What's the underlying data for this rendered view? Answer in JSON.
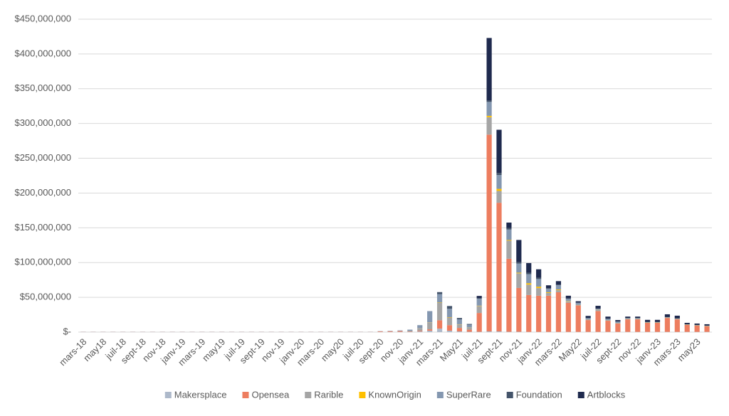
{
  "chart_data": {
    "type": "stacked_bar",
    "categories": [
      "mars-18",
      null,
      "may18",
      null,
      "juil-18",
      null,
      "sept-18",
      null,
      "nov-18",
      null,
      "janv-19",
      null,
      "mars-19",
      null,
      "may19",
      null,
      "juil-19",
      null,
      "sept-19",
      null,
      "nov-19",
      null,
      "janv-20",
      null,
      "mars-20",
      null,
      "may20",
      null,
      "juil-20",
      null,
      "sept-20",
      null,
      "nov-20",
      null,
      "janv-21",
      null,
      "mars-21",
      null,
      "May21",
      null,
      "juil-21",
      null,
      "sept-21",
      null,
      "nov-21",
      null,
      "janv-22",
      null,
      "mars-22",
      null,
      "May22",
      null,
      "juil-22",
      null,
      "sept-22",
      null,
      "nov-22",
      null,
      "janv-23",
      null,
      "mars-23",
      null,
      "may23",
      null
    ],
    "series": [
      {
        "name": "Makersplace",
        "color": "#adb9ca",
        "values": [
          100000,
          100000,
          100000,
          100000,
          100000,
          100000,
          100000,
          100000,
          100000,
          100000,
          100000,
          100000,
          100000,
          100000,
          100000,
          100000,
          100000,
          100000,
          100000,
          100000,
          100000,
          100000,
          100000,
          100000,
          100000,
          100000,
          100000,
          100000,
          100000,
          100000,
          300000,
          300000,
          400000,
          500000,
          1000000,
          2000000,
          5000000,
          2000000,
          1000000,
          500000,
          500000,
          1000000,
          1000000,
          500000,
          500000,
          300000,
          300000,
          300000,
          300000,
          300000,
          300000,
          300000,
          300000,
          300000,
          300000,
          300000,
          300000,
          300000,
          300000,
          300000,
          300000,
          300000,
          300000,
          300000
        ]
      },
      {
        "name": "Opensea",
        "color": "#ed7d5f",
        "values": [
          200000,
          200000,
          200000,
          200000,
          200000,
          200000,
          200000,
          200000,
          200000,
          200000,
          200000,
          200000,
          200000,
          200000,
          200000,
          200000,
          200000,
          200000,
          200000,
          200000,
          200000,
          200000,
          200000,
          200000,
          200000,
          200000,
          200000,
          200000,
          200000,
          200000,
          800000,
          1000000,
          1200000,
          500000,
          1000000,
          2000000,
          12000000,
          8000000,
          5000000,
          3000000,
          27000000,
          283000000,
          185000000,
          105000000,
          63000000,
          53000000,
          52000000,
          52000000,
          57000000,
          42000000,
          38000000,
          17000000,
          30000000,
          16000000,
          12000000,
          18000000,
          18000000,
          13000000,
          13000000,
          20000000,
          18000000,
          10000000,
          9000000,
          8000000
        ]
      },
      {
        "name": "Rarible",
        "color": "#a5a5a5",
        "values": [
          0,
          0,
          0,
          0,
          0,
          0,
          0,
          0,
          0,
          0,
          0,
          0,
          0,
          0,
          0,
          0,
          0,
          0,
          0,
          0,
          0,
          0,
          0,
          0,
          0,
          0,
          0,
          0,
          0,
          0,
          0,
          0,
          0,
          1000000,
          4000000,
          10000000,
          25000000,
          11000000,
          5000000,
          3000000,
          10000000,
          25000000,
          17000000,
          26000000,
          21000000,
          15000000,
          11000000,
          4000000,
          3000000,
          2000000,
          500000,
          500000,
          2000000,
          500000,
          500000,
          500000,
          500000,
          300000,
          300000,
          300000,
          300000,
          200000,
          200000,
          200000
        ]
      },
      {
        "name": "KnownOrigin",
        "color": "#ffc000",
        "values": [
          0,
          0,
          0,
          0,
          0,
          0,
          0,
          0,
          0,
          0,
          0,
          0,
          0,
          0,
          0,
          0,
          0,
          0,
          0,
          0,
          0,
          0,
          0,
          0,
          0,
          0,
          0,
          0,
          0,
          0,
          0,
          0,
          0,
          0,
          0,
          200000,
          500000,
          500000,
          300000,
          200000,
          500000,
          2000000,
          3000000,
          1000000,
          1000000,
          2000000,
          2000000,
          1000000,
          1000000,
          500000,
          300000,
          200000,
          200000,
          200000,
          200000,
          200000,
          200000,
          200000,
          200000,
          200000,
          200000,
          200000,
          200000,
          200000
        ]
      },
      {
        "name": "SuperRare",
        "color": "#8497b0",
        "values": [
          200000,
          200000,
          200000,
          200000,
          200000,
          200000,
          200000,
          200000,
          200000,
          200000,
          200000,
          200000,
          200000,
          200000,
          200000,
          200000,
          200000,
          200000,
          200000,
          200000,
          200000,
          200000,
          200000,
          200000,
          200000,
          200000,
          200000,
          200000,
          200000,
          200000,
          300000,
          500000,
          800000,
          1500000,
          4000000,
          16000000,
          12000000,
          12000000,
          7000000,
          4000000,
          10000000,
          20000000,
          20000000,
          15000000,
          13000000,
          13000000,
          11000000,
          5000000,
          6000000,
          3000000,
          3000000,
          2000000,
          1000000,
          2000000,
          2000000,
          1000000,
          1000000,
          500000,
          500000,
          500000,
          500000,
          300000,
          300000,
          300000
        ]
      },
      {
        "name": "Foundation",
        "color": "#44546a",
        "values": [
          0,
          0,
          0,
          0,
          0,
          0,
          0,
          0,
          0,
          0,
          0,
          0,
          0,
          0,
          0,
          0,
          0,
          0,
          0,
          0,
          0,
          0,
          0,
          0,
          0,
          0,
          0,
          0,
          0,
          0,
          0,
          0,
          0,
          0,
          0,
          0,
          3000000,
          4000000,
          2000000,
          1000000,
          1000000,
          2000000,
          3000000,
          2000000,
          2000000,
          2000000,
          2000000,
          1000000,
          1000000,
          500000,
          300000,
          300000,
          300000,
          300000,
          300000,
          300000,
          300000,
          300000,
          300000,
          300000,
          300000,
          300000,
          300000,
          300000
        ]
      },
      {
        "name": "Artblocks",
        "color": "#1f2a4e",
        "values": [
          0,
          0,
          0,
          0,
          0,
          0,
          0,
          0,
          0,
          0,
          0,
          0,
          0,
          0,
          0,
          0,
          0,
          0,
          0,
          0,
          0,
          0,
          0,
          0,
          0,
          0,
          0,
          0,
          0,
          0,
          0,
          0,
          0,
          0,
          0,
          0,
          0,
          0,
          0,
          0,
          3000000,
          90000000,
          62000000,
          8000000,
          32000000,
          14000000,
          12000000,
          4000000,
          5000000,
          4000000,
          2000000,
          3000000,
          4000000,
          3000000,
          2000000,
          2000000,
          2000000,
          3000000,
          3000000,
          4000000,
          4000000,
          2000000,
          2000000,
          2000000
        ]
      }
    ],
    "ylim": [
      0,
      450000000
    ],
    "yticks": [
      {
        "value": 0,
        "label": "$-"
      },
      {
        "value": 50000000,
        "label": "$50,000,000"
      },
      {
        "value": 100000000,
        "label": "$100,000,000"
      },
      {
        "value": 150000000,
        "label": "$150,000,000"
      },
      {
        "value": 200000000,
        "label": "$200,000,000"
      },
      {
        "value": 250000000,
        "label": "$250,000,000"
      },
      {
        "value": 300000000,
        "label": "$300,000,000"
      },
      {
        "value": 350000000,
        "label": "$350,000,000"
      },
      {
        "value": 400000000,
        "label": "$400,000,000"
      },
      {
        "value": 450000000,
        "label": "$450,000,000"
      }
    ],
    "grid": true,
    "legend": "bottom"
  }
}
